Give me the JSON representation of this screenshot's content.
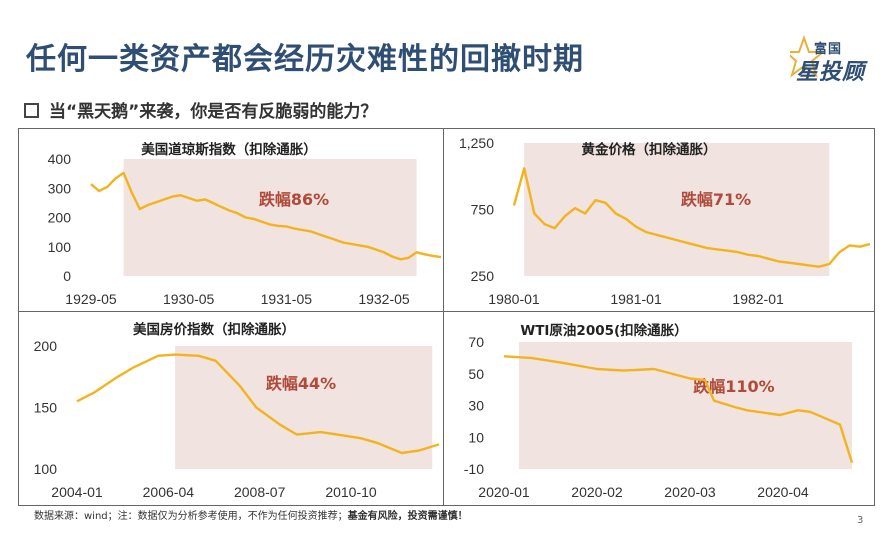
{
  "page": {
    "title": "任何一类资产都会经历灾难性的回撤时期",
    "subtitle": "当“黑天鹅”来袭，你是否有反脆弱的能力？",
    "logo_top": "富国",
    "logo_bottom": "星投顾",
    "footer_normal": "数据来源：wind；注：数据仅为分析参考使用，不作为任何投资推荐；",
    "footer_bold": "基金有风险，投资需谨慎！",
    "page_number": "3"
  },
  "colors": {
    "line": "#f3b31f",
    "shade": "#f1e3df",
    "title": "#2f4e74",
    "drop_text": "#b04a3a"
  },
  "chart_data": [
    {
      "type": "line",
      "title": "美国道琼斯指数（扣除通胀）",
      "annotation": "跌幅86%",
      "x_ticks": [
        "1929-05",
        "1930-05",
        "1931-05",
        "1932-05"
      ],
      "x_range": [
        "1929-05",
        "1932-12"
      ],
      "y_ticks": [
        "400",
        "300",
        "200",
        "100",
        "0"
      ],
      "ylim": [
        0,
        420
      ],
      "shade_x": [
        "1929-09",
        "1932-09"
      ],
      "series": [
        {
          "x": [
            "1929-05",
            "1929-06",
            "1929-07",
            "1929-08",
            "1929-09",
            "1929-10",
            "1929-11",
            "1929-12",
            "1930-01",
            "1930-02",
            "1930-03",
            "1930-04",
            "1930-05",
            "1930-06",
            "1930-07",
            "1930-08",
            "1930-09",
            "1930-10",
            "1930-11",
            "1930-12",
            "1931-01",
            "1931-02",
            "1931-03",
            "1931-04",
            "1931-05",
            "1931-06",
            "1931-07",
            "1931-08",
            "1931-09",
            "1931-10",
            "1931-11",
            "1931-12",
            "1932-01",
            "1932-02",
            "1932-03",
            "1932-04",
            "1932-05",
            "1932-06",
            "1932-07",
            "1932-08",
            "1932-09",
            "1932-10",
            "1932-11",
            "1932-12"
          ],
          "y": [
            330,
            305,
            320,
            350,
            370,
            300,
            240,
            255,
            265,
            275,
            285,
            290,
            280,
            270,
            275,
            262,
            248,
            235,
            225,
            210,
            205,
            195,
            185,
            180,
            178,
            170,
            165,
            160,
            150,
            140,
            130,
            120,
            115,
            110,
            105,
            95,
            85,
            70,
            60,
            65,
            85,
            78,
            72,
            68
          ]
        }
      ]
    },
    {
      "type": "line",
      "title": "黄金价格（扣除通胀）",
      "annotation": "跌幅71%",
      "x_ticks": [
        "1980-01",
        "1981-01",
        "1982-01"
      ],
      "x_range": [
        "1980-01",
        "1982-12"
      ],
      "y_ticks": [
        "1,250",
        "750",
        "250"
      ],
      "ylim": [
        250,
        1250
      ],
      "shade_x": [
        "1980-02",
        "1982-08"
      ],
      "series": [
        {
          "x": [
            "1980-01",
            "1980-02",
            "1980-03",
            "1980-04",
            "1980-05",
            "1980-06",
            "1980-07",
            "1980-08",
            "1980-09",
            "1980-10",
            "1980-11",
            "1980-12",
            "1981-01",
            "1981-02",
            "1981-03",
            "1981-04",
            "1981-05",
            "1981-06",
            "1981-07",
            "1981-08",
            "1981-09",
            "1981-10",
            "1981-11",
            "1981-12",
            "1982-01",
            "1982-02",
            "1982-03",
            "1982-04",
            "1982-05",
            "1982-06",
            "1982-07",
            "1982-08",
            "1982-09",
            "1982-10",
            "1982-11",
            "1982-12"
          ],
          "y": [
            780,
            1060,
            720,
            640,
            610,
            700,
            760,
            720,
            820,
            800,
            720,
            680,
            620,
            580,
            560,
            540,
            520,
            500,
            480,
            460,
            450,
            440,
            430,
            410,
            400,
            380,
            360,
            350,
            340,
            330,
            320,
            340,
            430,
            480,
            470,
            490
          ]
        }
      ]
    },
    {
      "type": "line",
      "title": "美国房价指数（扣除通胀）",
      "annotation": "跌幅44%",
      "x_ticks": [
        "2004-01",
        "2006-04",
        "2008-07",
        "2010-10"
      ],
      "x_range": [
        "2004-01",
        "2012-12"
      ],
      "y_ticks": [
        "200",
        "150",
        "100"
      ],
      "ylim": [
        100,
        200
      ],
      "shade_x": [
        "2006-06",
        "2012-10"
      ],
      "series": [
        {
          "x": [
            "2004-01",
            "2004-06",
            "2005-01",
            "2005-06",
            "2006-01",
            "2006-06",
            "2007-01",
            "2007-06",
            "2008-01",
            "2008-06",
            "2009-01",
            "2009-06",
            "2010-01",
            "2010-06",
            "2011-01",
            "2011-06",
            "2012-01",
            "2012-06",
            "2012-12"
          ],
          "y": [
            155,
            162,
            175,
            183,
            192,
            193,
            192,
            188,
            168,
            150,
            136,
            128,
            130,
            128,
            125,
            121,
            113,
            115,
            120
          ]
        }
      ]
    },
    {
      "type": "line",
      "title": "WTI原油2005(扣除通胀）",
      "annotation": "跌幅110%",
      "x_ticks": [
        "2020-01",
        "2020-02",
        "2020-03",
        "2020-04"
      ],
      "x_range": [
        "2020-01-01",
        "2020-04-30"
      ],
      "y_ticks": [
        "70",
        "50",
        "30",
        "10",
        "-10"
      ],
      "ylim": [
        -10,
        70
      ],
      "shade_x": [
        "2020-01-06",
        "2020-04-24"
      ],
      "series": [
        {
          "x": [
            "2020-01-01",
            "2020-01-10",
            "2020-01-20",
            "2020-02-01",
            "2020-02-10",
            "2020-02-20",
            "2020-03-01",
            "2020-03-06",
            "2020-03-09",
            "2020-03-16",
            "2020-03-20",
            "2020-03-31",
            "2020-04-06",
            "2020-04-10",
            "2020-04-15",
            "2020-04-20",
            "2020-04-24"
          ],
          "y": [
            61,
            60,
            57,
            53,
            52,
            53,
            47,
            46,
            33,
            29,
            27,
            24,
            27,
            26,
            22,
            18,
            -6
          ]
        }
      ]
    }
  ]
}
